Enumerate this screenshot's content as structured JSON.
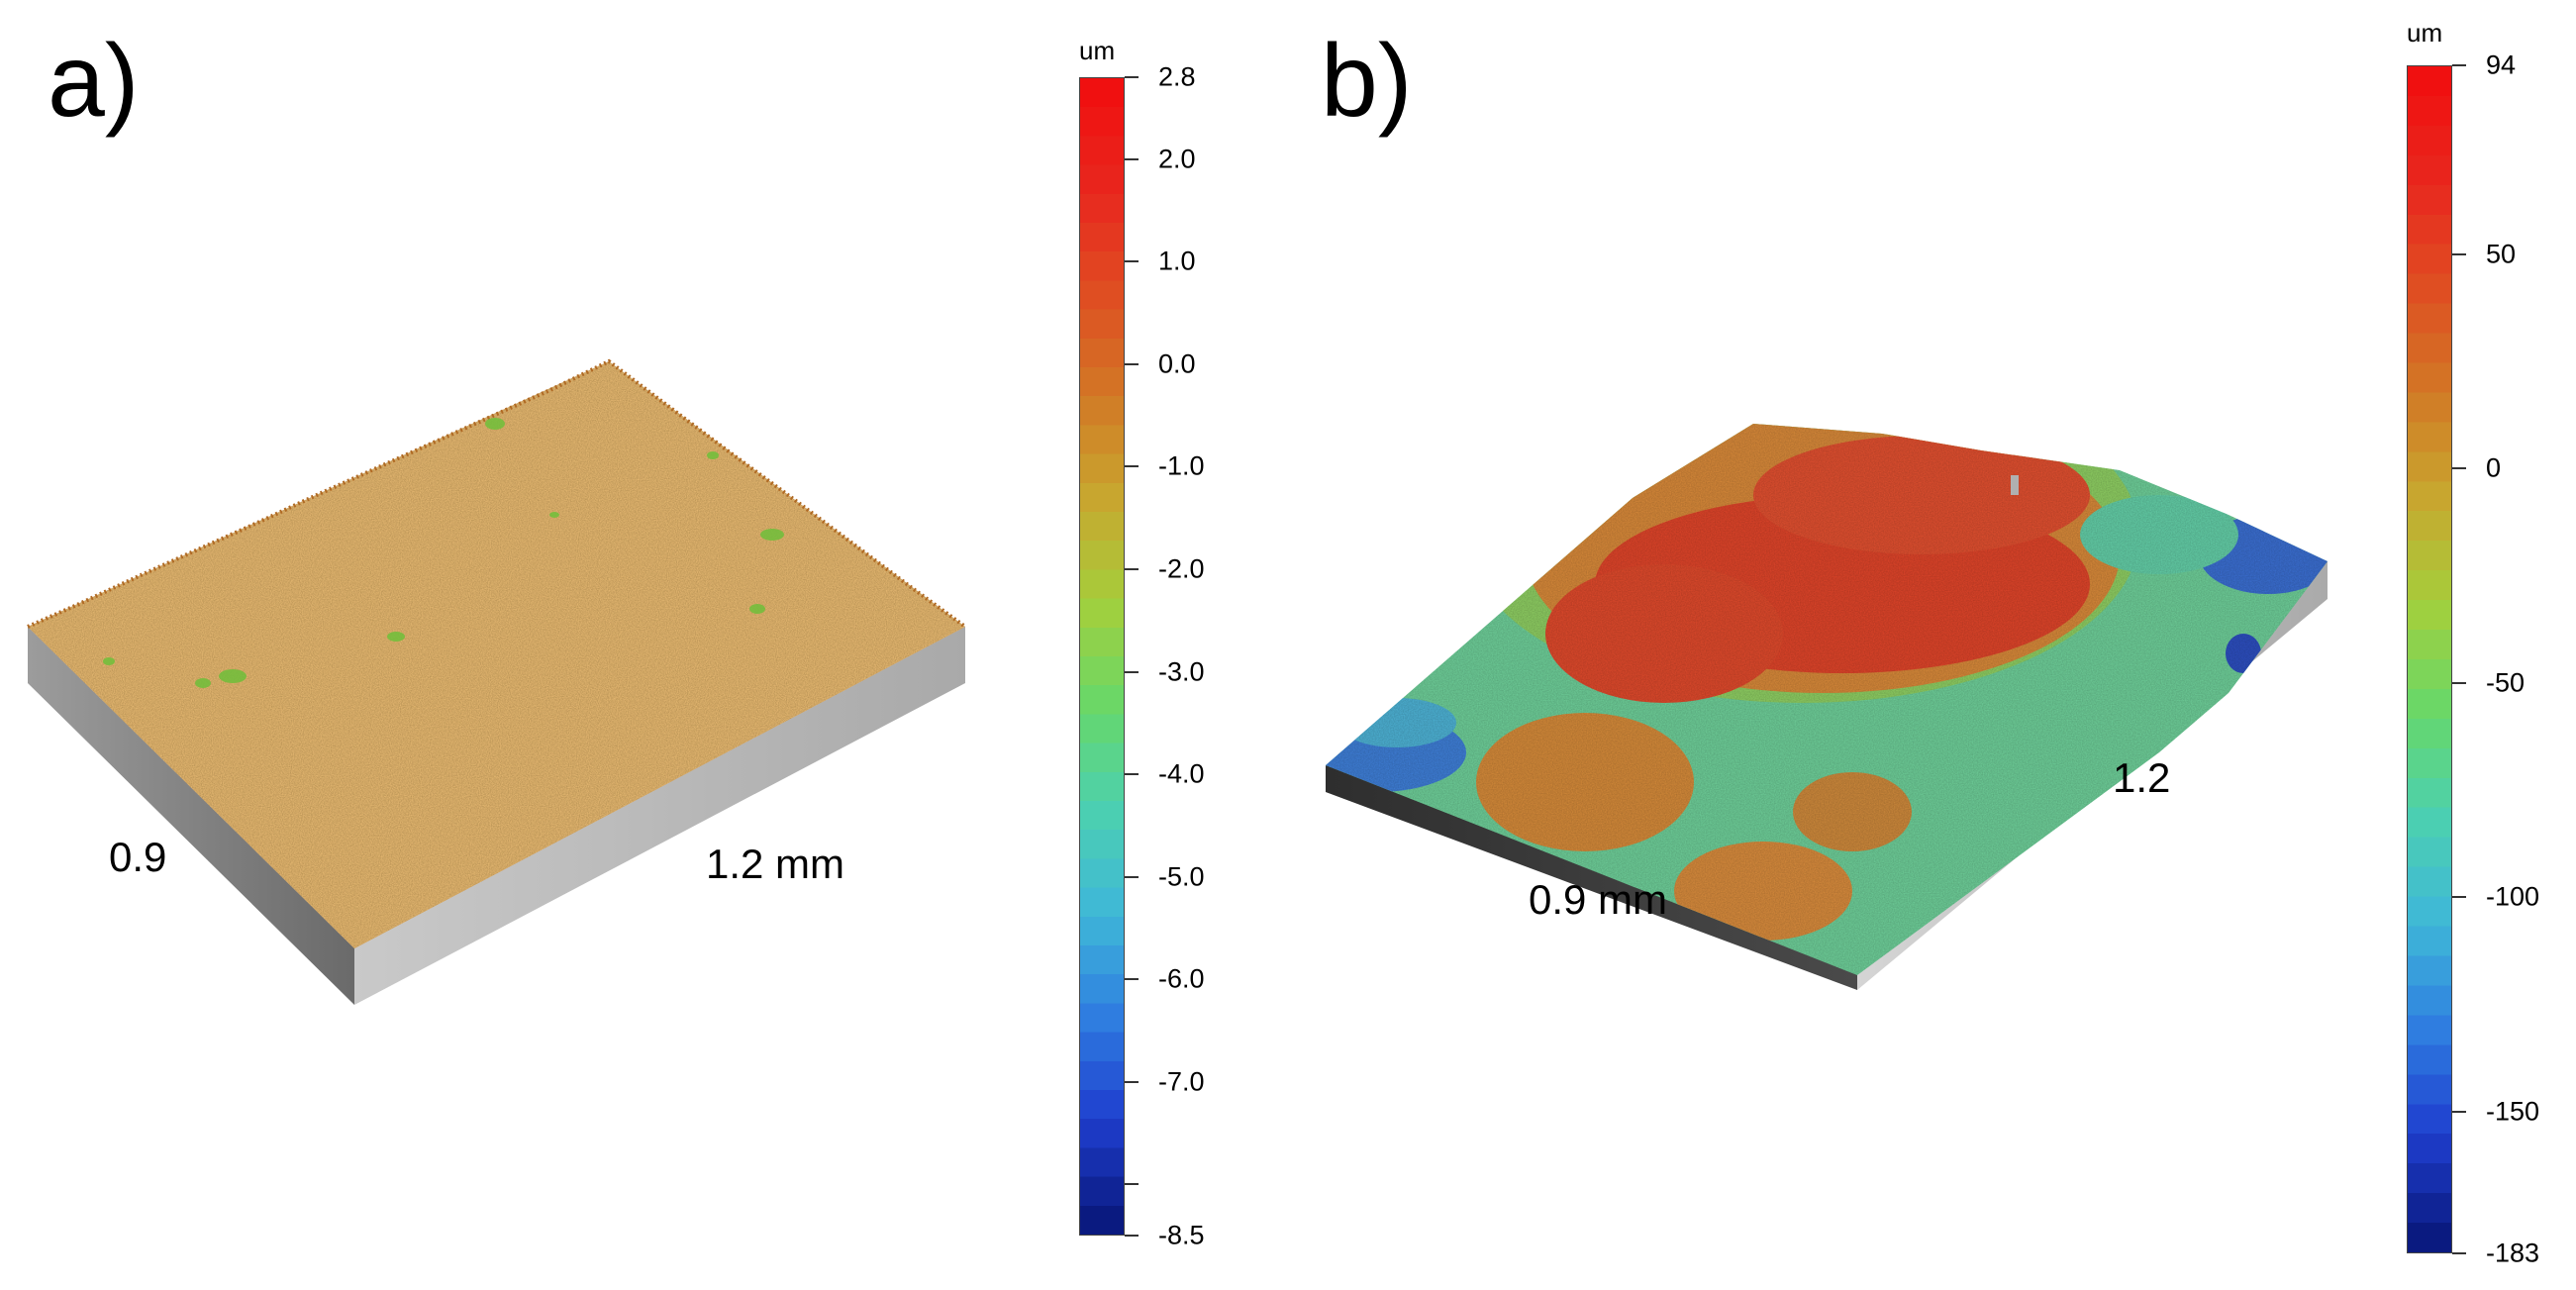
{
  "panels": [
    {
      "letter": "a)",
      "dimension_labels": [
        "0.9",
        "1.2 mm"
      ],
      "colorbar": {
        "unit": "um",
        "min": -8.5,
        "max": 2.8,
        "ticks": [
          "2.8",
          "2.0",
          "1.0",
          "0.0",
          "-1.0",
          "-2.0",
          "-3.0",
          "-4.0",
          "-5.0",
          "-6.0",
          "-7.0",
          "-8.5"
        ],
        "tick_values": [
          2.8,
          2.0,
          1.0,
          0.0,
          -1.0,
          -2.0,
          -3.0,
          -4.0,
          -5.0,
          -6.0,
          -7.0,
          -8.5
        ],
        "minor_tick_values": [
          -8.0
        ]
      },
      "surface": {
        "dominant_color": "#bf7a2e",
        "height_levels": {
          "typical": 0.3,
          "spots": -2.0
        }
      }
    },
    {
      "letter": "b)",
      "dimension_labels": [
        "0.9 mm",
        "1.2"
      ],
      "colorbar": {
        "unit": "um",
        "min": -183,
        "max": 94,
        "ticks": [
          "94",
          "50",
          "0",
          "-50",
          "-100",
          "-150",
          "-183"
        ],
        "tick_values": [
          94,
          50,
          0,
          -50,
          -100,
          -150,
          -183
        ],
        "minor_tick_values": []
      },
      "surface": {
        "dominant_color": "#d65a30"
      }
    }
  ],
  "colors": {
    "colormap": [
      "#0a1a80",
      "#1f3fcf",
      "#2f7fe0",
      "#3fb8d8",
      "#4cd0b0",
      "#67d86a",
      "#a3cf3c",
      "#c8a82f",
      "#d17a26",
      "#df4f22",
      "#e8281e",
      "#f01010"
    ],
    "block_side_light": "#bdbdbd",
    "block_side_dark": "#3c3c3c",
    "block_side_mid": "#8a8a8a"
  }
}
